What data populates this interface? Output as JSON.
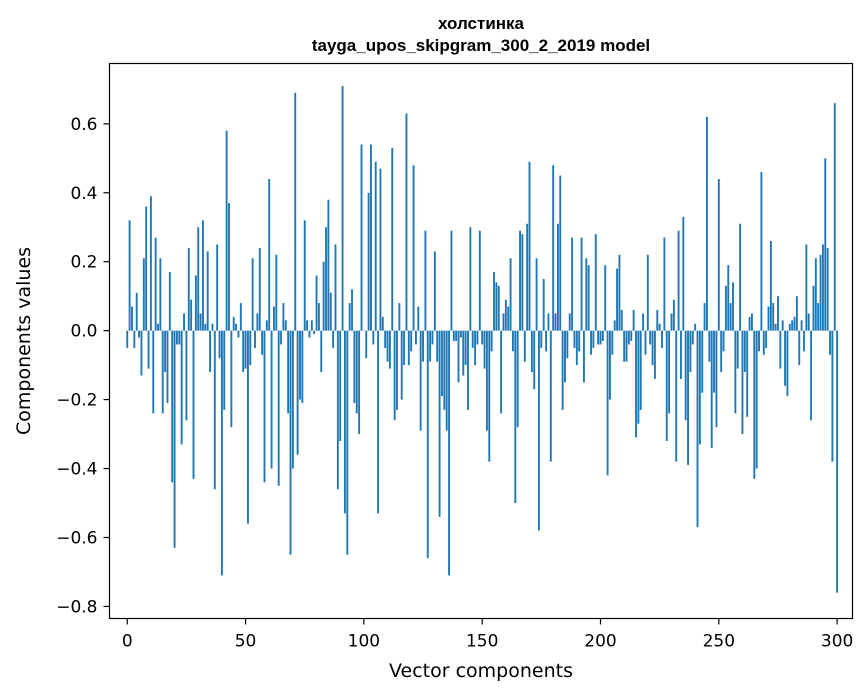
{
  "chart_data": {
    "type": "bar",
    "title": "холстинка",
    "subtitle": "tayga_upos_skipgram_300_2_2019 model",
    "xlabel": "Vector components",
    "ylabel": "Components values",
    "xlim": [
      -7.5,
      306.5
    ],
    "ylim": [
      -0.835,
      0.775
    ],
    "xticks": [
      0,
      50,
      100,
      150,
      200,
      250,
      300
    ],
    "yticks": [
      -0.8,
      -0.6,
      -0.4,
      -0.2,
      0.0,
      0.2,
      0.4,
      0.6
    ],
    "ytick_labels": [
      "−0.8",
      "−0.6",
      "−0.4",
      "−0.2",
      "0.0",
      "0.2",
      "0.4",
      "0.6"
    ],
    "xtick_labels": [
      "0",
      "50",
      "100",
      "150",
      "200",
      "250",
      "300"
    ],
    "grid": false,
    "bar_color": "#1f77b4",
    "values": [
      -0.05,
      0.32,
      0.07,
      -0.05,
      0.11,
      -0.02,
      -0.13,
      0.21,
      0.36,
      -0.11,
      0.39,
      -0.24,
      0.27,
      0.02,
      0.21,
      -0.24,
      -0.12,
      -0.21,
      0.17,
      -0.44,
      -0.63,
      -0.04,
      -0.04,
      -0.33,
      0.05,
      -0.26,
      0.24,
      0.09,
      -0.43,
      0.16,
      0.3,
      0.05,
      0.32,
      0.02,
      0.23,
      -0.12,
      0.02,
      -0.46,
      0.25,
      -0.08,
      -0.71,
      -0.23,
      0.58,
      0.37,
      -0.28,
      0.04,
      0.02,
      -0.02,
      0.08,
      -0.12,
      -0.11,
      -0.56,
      -0.1,
      0.21,
      -0.05,
      0.05,
      0.24,
      -0.07,
      -0.44,
      0.03,
      0.44,
      -0.4,
      0.07,
      0.22,
      -0.45,
      -0.04,
      0.08,
      0.03,
      -0.24,
      -0.65,
      -0.4,
      0.69,
      -0.36,
      -0.2,
      -0.21,
      0.32,
      0.03,
      -0.02,
      0.03,
      -0.01,
      0.16,
      0.08,
      -0.12,
      0.2,
      0.3,
      0.38,
      0.11,
      -0.05,
      0.25,
      -0.46,
      -0.32,
      0.71,
      -0.53,
      -0.65,
      0.08,
      0.12,
      -0.21,
      -0.24,
      -0.3,
      0.54,
      0.0,
      -0.08,
      0.4,
      0.54,
      -0.04,
      0.49,
      -0.53,
      0.47,
      0.04,
      -0.05,
      -0.09,
      -0.11,
      0.53,
      -0.26,
      -0.23,
      0.08,
      -0.2,
      -0.1,
      0.63,
      -0.1,
      -0.06,
      0.48,
      -0.04,
      0.07,
      -0.29,
      -0.09,
      0.29,
      -0.66,
      -0.09,
      -0.04,
      0.23,
      -0.09,
      -0.54,
      -0.19,
      -0.23,
      -0.29,
      -0.71,
      0.29,
      -0.03,
      -0.03,
      -0.15,
      -0.02,
      -0.13,
      -0.1,
      -0.23,
      0.3,
      -0.05,
      -0.1,
      -0.04,
      0.29,
      -0.04,
      -0.11,
      -0.29,
      -0.38,
      -0.06,
      0.17,
      0.14,
      0.13,
      -0.24,
      0.05,
      0.09,
      0.07,
      0.21,
      -0.06,
      -0.5,
      -0.28,
      0.29,
      0.28,
      -0.09,
      0.31,
      0.49,
      -0.12,
      -0.17,
      0.21,
      -0.58,
      -0.05,
      0.15,
      -0.06,
      0.05,
      -0.38,
      0.48,
      0.05,
      0.31,
      0.45,
      -0.23,
      -0.15,
      -0.08,
      0.05,
      0.27,
      -0.05,
      -0.1,
      -0.06,
      0.27,
      -0.15,
      0.21,
      0.19,
      -0.07,
      -0.05,
      0.28,
      -0.04,
      -0.04,
      -0.03,
      0.19,
      -0.42,
      -0.2,
      -0.07,
      0.03,
      0.18,
      0.22,
      0.06,
      -0.09,
      -0.09,
      -0.04,
      -0.03,
      0.06,
      -0.31,
      -0.27,
      -0.23,
      0.05,
      -0.07,
      0.22,
      -0.04,
      -0.1,
      -0.14,
      0.06,
      0.02,
      -0.05,
      0.27,
      -0.32,
      -0.24,
      0.05,
      0.09,
      -0.38,
      0.29,
      -0.14,
      0.33,
      -0.26,
      -0.39,
      -0.12,
      -0.04,
      0.02,
      -0.57,
      -0.33,
      -0.18,
      0.08,
      0.62,
      -0.09,
      -0.34,
      -0.18,
      -0.28,
      0.44,
      -0.12,
      -0.06,
      0.13,
      0.19,
      0.08,
      0.14,
      -0.24,
      -0.11,
      0.31,
      -0.3,
      -0.12,
      -0.25,
      0.04,
      0.05,
      -0.43,
      -0.4,
      -0.06,
      0.46,
      -0.07,
      -0.05,
      0.07,
      0.26,
      0.08,
      0.02,
      0.1,
      -0.11,
      0.03,
      -0.16,
      -0.19,
      0.02,
      0.03,
      0.04,
      0.1,
      -0.1,
      0.03,
      -0.06,
      0.25,
      0.05,
      -0.26,
      0.13,
      0.21,
      0.08,
      0.22,
      0.25,
      0.5,
      0.24,
      -0.07,
      -0.38,
      0.66,
      -0.76
    ]
  }
}
